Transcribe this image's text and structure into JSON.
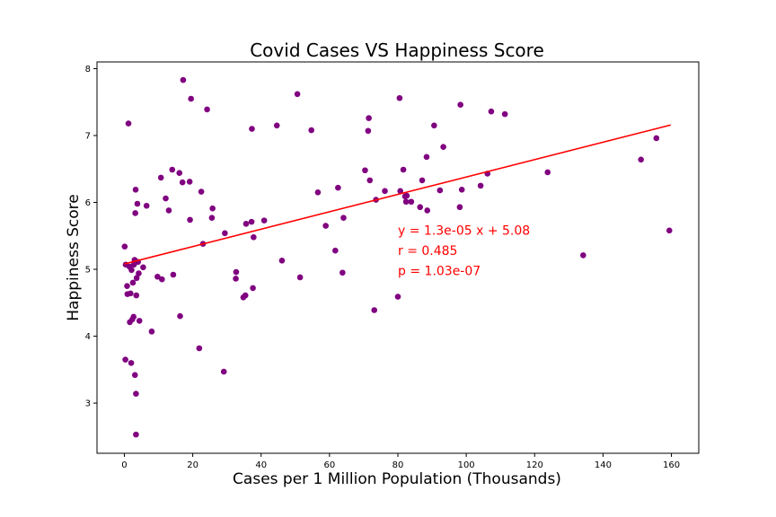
{
  "chart_data": {
    "type": "scatter",
    "title": "Covid Cases VS Happiness Score",
    "xlabel": "Cases per 1 Million Population (Thousands)",
    "ylabel": "Happiness Score",
    "xlim": [
      -8,
      168
    ],
    "ylim": [
      2.25,
      8.1
    ],
    "xticks": [
      0,
      20,
      40,
      60,
      80,
      100,
      120,
      140,
      160
    ],
    "yticks": [
      3,
      4,
      5,
      6,
      7,
      8
    ],
    "grid": false,
    "point_color": "#800080",
    "line_color": "#ff0000",
    "regression": {
      "slope": 0.013,
      "intercept": 5.08,
      "x_range": [
        0,
        159.8
      ]
    },
    "annotations": [
      "y = 1.3e-05 x + 5.08",
      "r = 0.485",
      "p = 1.03e-07"
    ],
    "points": [
      [
        0.1,
        5.34
      ],
      [
        0.3,
        3.65
      ],
      [
        0.4,
        5.07
      ],
      [
        0.8,
        4.75
      ],
      [
        0.9,
        4.63
      ],
      [
        1.2,
        7.18
      ],
      [
        1.5,
        5.04
      ],
      [
        1.6,
        4.21
      ],
      [
        1.8,
        4.64
      ],
      [
        2.0,
        3.6
      ],
      [
        2.1,
        4.99
      ],
      [
        2.3,
        4.25
      ],
      [
        2.5,
        4.8
      ],
      [
        2.7,
        4.29
      ],
      [
        2.8,
        5.07
      ],
      [
        3.0,
        5.14
      ],
      [
        3.1,
        3.42
      ],
      [
        3.2,
        5.84
      ],
      [
        3.3,
        6.19
      ],
      [
        3.4,
        3.14
      ],
      [
        3.4,
        2.53
      ],
      [
        3.5,
        4.61
      ],
      [
        3.6,
        4.87
      ],
      [
        3.8,
        5.98
      ],
      [
        4.0,
        5.11
      ],
      [
        4.2,
        4.94
      ],
      [
        4.4,
        4.23
      ],
      [
        5.5,
        5.03
      ],
      [
        6.5,
        5.95
      ],
      [
        8.0,
        4.07
      ],
      [
        9.7,
        4.89
      ],
      [
        10.7,
        6.37
      ],
      [
        11.0,
        4.85
      ],
      [
        12.1,
        6.06
      ],
      [
        13.0,
        5.88
      ],
      [
        14.0,
        6.49
      ],
      [
        14.3,
        4.92
      ],
      [
        16.1,
        6.44
      ],
      [
        16.3,
        4.3
      ],
      [
        17.0,
        6.3
      ],
      [
        17.2,
        7.83
      ],
      [
        19.1,
        6.31
      ],
      [
        19.2,
        5.74
      ],
      [
        19.5,
        7.55
      ],
      [
        21.9,
        3.82
      ],
      [
        22.5,
        6.16
      ],
      [
        23.0,
        5.38
      ],
      [
        24.2,
        7.39
      ],
      [
        25.6,
        5.77
      ],
      [
        25.8,
        5.91
      ],
      [
        29.1,
        3.47
      ],
      [
        29.4,
        5.54
      ],
      [
        32.6,
        4.86
      ],
      [
        32.7,
        4.96
      ],
      [
        34.8,
        4.58
      ],
      [
        35.4,
        4.61
      ],
      [
        35.6,
        5.68
      ],
      [
        37.2,
        5.71
      ],
      [
        37.3,
        7.1
      ],
      [
        37.6,
        4.72
      ],
      [
        37.8,
        5.48
      ],
      [
        40.9,
        5.73
      ],
      [
        44.6,
        7.15
      ],
      [
        46.1,
        5.13
      ],
      [
        50.6,
        7.62
      ],
      [
        51.4,
        4.88
      ],
      [
        54.7,
        7.08
      ],
      [
        56.6,
        6.15
      ],
      [
        58.9,
        5.65
      ],
      [
        61.7,
        5.28
      ],
      [
        62.5,
        6.22
      ],
      [
        63.8,
        4.95
      ],
      [
        64.1,
        5.77
      ],
      [
        70.4,
        6.48
      ],
      [
        71.3,
        7.07
      ],
      [
        71.5,
        7.26
      ],
      [
        71.8,
        6.33
      ],
      [
        73.1,
        4.39
      ],
      [
        73.6,
        6.04
      ],
      [
        76.2,
        6.17
      ],
      [
        80.0,
        4.59
      ],
      [
        80.5,
        7.56
      ],
      [
        80.7,
        6.17
      ],
      [
        81.6,
        6.49
      ],
      [
        82.1,
        6.09
      ],
      [
        82.4,
        6.01
      ],
      [
        82.6,
        6.1
      ],
      [
        83.9,
        6.01
      ],
      [
        86.5,
        5.93
      ],
      [
        87.1,
        6.33
      ],
      [
        88.4,
        6.68
      ],
      [
        88.6,
        5.88
      ],
      [
        90.6,
        7.15
      ],
      [
        92.3,
        6.18
      ],
      [
        93.3,
        6.83
      ],
      [
        98.1,
        5.93
      ],
      [
        98.3,
        7.46
      ],
      [
        98.7,
        6.19
      ],
      [
        104.2,
        6.25
      ],
      [
        106.2,
        6.43
      ],
      [
        107.3,
        7.36
      ],
      [
        111.3,
        7.32
      ],
      [
        123.8,
        6.45
      ],
      [
        134.2,
        5.21
      ],
      [
        151.1,
        6.64
      ],
      [
        155.6,
        6.96
      ],
      [
        159.4,
        5.58
      ]
    ]
  }
}
